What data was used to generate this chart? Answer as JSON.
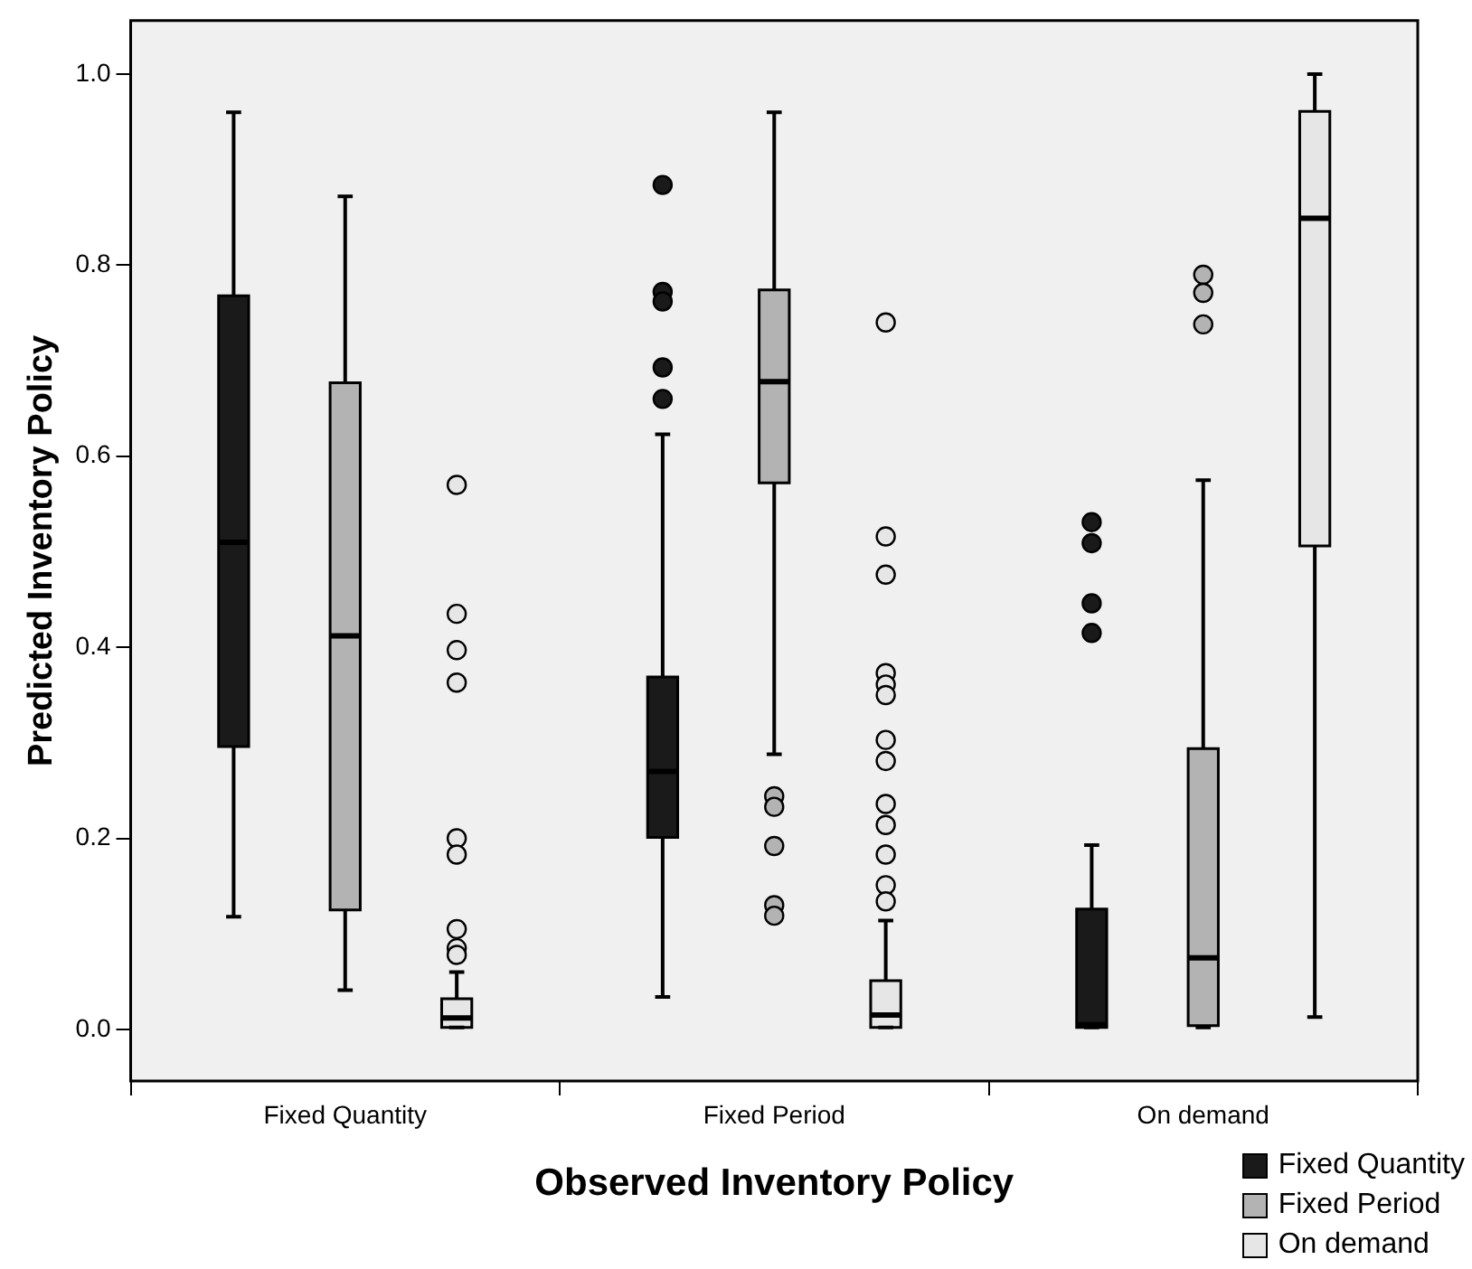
{
  "chart_data": {
    "type": "box",
    "xlabel": "Observed Inventory Policy",
    "ylabel": "Predicted Inventory Policy",
    "categories": [
      "Fixed Quantity",
      "Fixed Period",
      "On demand"
    ],
    "ylim": [
      -0.054,
      1.056
    ],
    "yticks": [
      {
        "value": 0,
        "label": "0.0"
      },
      0.2,
      0.4,
      0.6,
      0.8,
      {
        "value": 1,
        "label": "1.0"
      }
    ],
    "grid": false,
    "legend": "bottom right",
    "series": [
      {
        "name": "Fixed Quantity",
        "color": "#1a1a1a",
        "boxes": [
          {
            "low": 0.118,
            "q1": 0.296,
            "median": 0.51,
            "q3": 0.768,
            "high": 0.96
          },
          {
            "low": 0.034,
            "q1": 0.201,
            "median": 0.27,
            "q3": 0.369,
            "high": 0.623,
            "outliers": [
              0.884,
              0.772,
              0.762,
              0.693,
              0.66
            ]
          },
          {
            "low": 0.002,
            "q1": 0.002,
            "median": 0.005,
            "q3": 0.126,
            "high": 0.193,
            "outliers": [
              0.531,
              0.509,
              0.446,
              0.415
            ]
          }
        ]
      },
      {
        "name": "Fixed Period",
        "color": "#b3b3b3",
        "boxes": [
          {
            "low": 0.041,
            "q1": 0.125,
            "median": 0.412,
            "q3": 0.677,
            "high": 0.872
          },
          {
            "low": 0.288,
            "q1": 0.572,
            "median": 0.678,
            "q3": 0.774,
            "high": 0.96,
            "outliers": [
              0.244,
              0.233,
              0.192,
              0.13,
              0.119
            ]
          },
          {
            "low": 0.002,
            "q1": 0.004,
            "median": 0.075,
            "q3": 0.294,
            "high": 0.575,
            "outliers": [
              0.79,
              0.771,
              0.738
            ]
          }
        ]
      },
      {
        "name": "On demand",
        "color": "#e6e6e6",
        "boxes": [
          {
            "low": 0.002,
            "q1": 0.002,
            "median": 0.012,
            "q3": 0.032,
            "high": 0.06,
            "outliers": [
              0.57,
              0.435,
              0.397,
              0.363,
              0.2,
              0.183,
              0.105,
              0.085,
              0.078
            ]
          },
          {
            "low": 0.002,
            "q1": 0.002,
            "median": 0.015,
            "q3": 0.051,
            "high": 0.114,
            "outliers": [
              0.74,
              0.516,
              0.476,
              0.373,
              0.361,
              0.35,
              0.303,
              0.281,
              0.236,
              0.214,
              0.183,
              0.151,
              0.134
            ]
          },
          {
            "low": 0.013,
            "q1": 0.506,
            "median": 0.849,
            "q3": 0.961,
            "high": 1.0
          }
        ]
      }
    ]
  }
}
